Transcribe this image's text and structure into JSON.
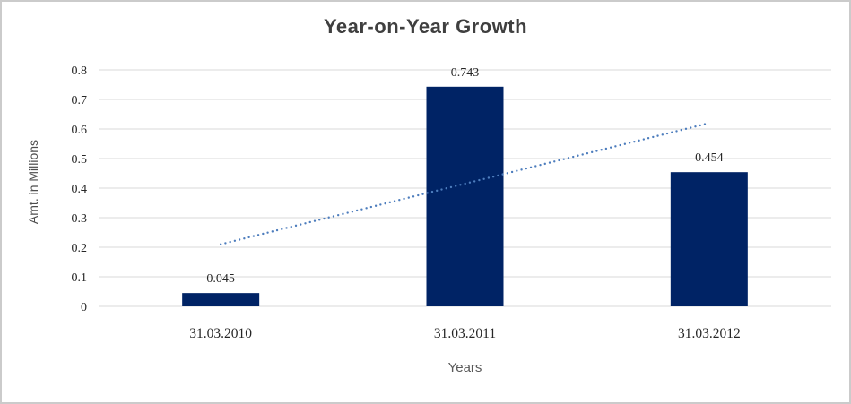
{
  "window": {
    "background": "#ffffff",
    "frame_border_color": "#cbcbcb"
  },
  "chart_data": {
    "type": "bar",
    "title": "Year-on-Year Growth",
    "xlabel": "Years",
    "ylabel": "Amt. in Millions",
    "categories": [
      "31.03.2010",
      "31.03.2011",
      "31.03.2012"
    ],
    "values": [
      0.045,
      0.743,
      0.454
    ],
    "value_labels": [
      "0.045",
      "0.743",
      "0.454"
    ],
    "ylim": [
      0,
      0.8
    ],
    "ytick_step": 0.1,
    "yticks": [
      "0",
      "0.1",
      "0.2",
      "0.3",
      "0.4",
      "0.5",
      "0.6",
      "0.7",
      "0.8"
    ],
    "grid": true,
    "legend": "none",
    "bar_color": "#002365",
    "gridline_color": "#d9d9d9",
    "title_color": "#3f3f3f",
    "label_color": "#262626",
    "axis_title_color": "#595959",
    "trendline": {
      "type": "linear",
      "style": "dotted",
      "color": "#4d7dbd",
      "start_category_index": 0,
      "end_category_index": 2,
      "start_value": 0.21,
      "end_value": 0.62
    }
  }
}
